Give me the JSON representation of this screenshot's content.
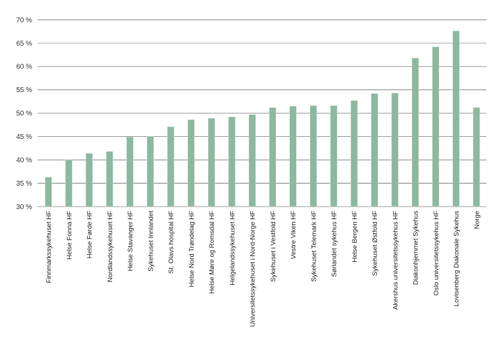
{
  "chart_data": {
    "type": "bar",
    "title": "",
    "xlabel": "",
    "ylabel": "",
    "ylim": [
      30,
      70
    ],
    "yticks": [
      30,
      35,
      40,
      45,
      50,
      55,
      60,
      65,
      70
    ],
    "ytick_labels": [
      "30 %",
      "35 %",
      "40 %",
      "45 %",
      "50 %",
      "55 %",
      "60 %",
      "65 %",
      "70 %"
    ],
    "grid": true,
    "bar_color": "#8db8a0",
    "categories": [
      "Finnmarkssykehuset HF",
      "Helse Fonna HF",
      "Helse Førde HF",
      "Nordlandssykehuset HF",
      "Helse Stavanger HF",
      "Sykehuset Innlandet",
      "St. Olavs hospital HF",
      "Helse Nord Trøndelag HF",
      "Helse Møre og Romsdal HF",
      "Helgelandssykehuset HF",
      "Universitetssykehuset i Nord-Norge HF",
      "Sykehuset i Vestfold HF",
      "Vestre Viken HF",
      "Sykehuset Telemark HF",
      "Sørlandet sykehus HF",
      "Helse Bergen HF",
      "Sykehuset Østfold HF",
      "Akershus universitetssykehus HF",
      "Diakonhjemmet Sykehus",
      "Oslo universitetssykehus HF",
      "Lovisenberg Diakonale Sykehus",
      "Norge"
    ],
    "values": [
      36.3,
      40.0,
      41.4,
      41.8,
      44.9,
      45.0,
      47.1,
      48.6,
      48.9,
      49.2,
      49.7,
      51.2,
      51.5,
      51.6,
      51.6,
      52.7,
      54.2,
      54.3,
      61.8,
      64.2,
      67.6,
      51.2
    ]
  }
}
